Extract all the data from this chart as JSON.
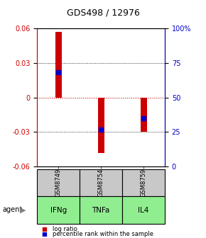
{
  "title": "GDS498 / 12976",
  "samples": [
    "GSM8749",
    "GSM8754",
    "GSM8759"
  ],
  "agents": [
    "IFNg",
    "TNFa",
    "IL4"
  ],
  "log_ratios": [
    0.057,
    -0.048,
    -0.03
  ],
  "percentile_ranks": [
    0.022,
    -0.028,
    -0.018
  ],
  "ylim": [
    -0.06,
    0.06
  ],
  "yticks_left": [
    -0.06,
    -0.03,
    0,
    0.03,
    0.06
  ],
  "yticks_right_vals": [
    0,
    25,
    50,
    75,
    100
  ],
  "yticks_right_pos": [
    -0.06,
    -0.03,
    0,
    0.03,
    0.06
  ],
  "bar_color": "#cc0000",
  "blue_color": "#0000cc",
  "left_axis_color": "#cc0000",
  "right_axis_color": "#0000cc",
  "zero_line_color": "#cc0000",
  "sample_bg": "#c8c8c8",
  "agent_bg": "#90ee90",
  "bar_width": 0.15,
  "blue_marker_size": 4,
  "legend_red_label": "log ratio",
  "legend_blue_label": "percentile rank within the sample",
  "fig_width": 2.9,
  "fig_height": 3.36
}
